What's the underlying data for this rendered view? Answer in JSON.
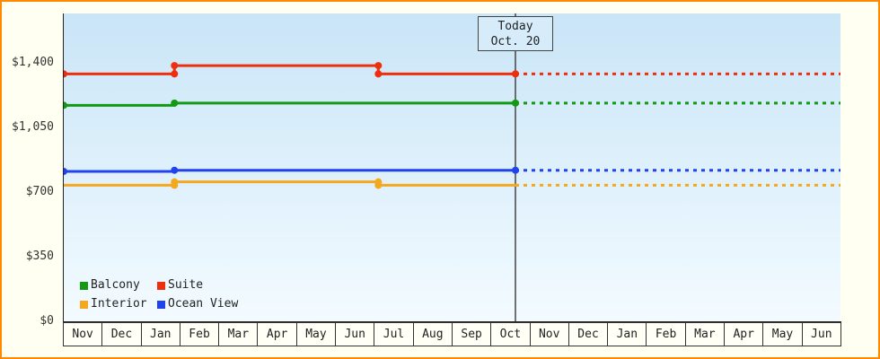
{
  "page": {
    "background_color": "#fffff2",
    "border_color": "#ff8a00"
  },
  "legend": {
    "items": [
      {
        "label": "Balcony",
        "color": "#129a12"
      },
      {
        "label": "Suite",
        "color": "#ee2f0e"
      },
      {
        "label": "Interior",
        "color": "#f4a81d"
      },
      {
        "label": "Ocean View",
        "color": "#2043ee"
      }
    ]
  },
  "chart_data": {
    "type": "line",
    "title": "",
    "xlabel": "",
    "ylabel": "",
    "ylim": [
      0,
      1400
    ],
    "grid": false,
    "legend_position": "bottom-left-inside",
    "y_ticks": [
      {
        "value": 0,
        "label": "$0"
      },
      {
        "value": 350,
        "label": "$350"
      },
      {
        "value": 700,
        "label": "$700"
      },
      {
        "value": 1050,
        "label": "$1,050"
      },
      {
        "value": 1400,
        "label": "$1,400"
      }
    ],
    "x_months": [
      "Nov",
      "Dec",
      "Jan",
      "Feb",
      "Mar",
      "Apr",
      "May",
      "Jun",
      "Jul",
      "Aug",
      "Sep",
      "Oct",
      "Nov",
      "Dec",
      "Jan",
      "Feb",
      "Mar",
      "Apr",
      "May",
      "Jun"
    ],
    "annotation": {
      "line1": "Today",
      "line2": "Oct. 20",
      "x": 11.63
    },
    "today_x": 11.63,
    "today_line_color": "#444444",
    "series": [
      {
        "name": "Interior",
        "color": "#f4a81d",
        "segments": {
          "solid": [
            [
              0,
              737
            ],
            [
              2.85,
              737
            ],
            [
              2.85,
              755
            ],
            [
              8.1,
              755
            ],
            [
              8.1,
              737
            ],
            [
              11.63,
              737
            ]
          ],
          "dashed": [
            [
              11.63,
              737
            ],
            [
              20,
              737
            ]
          ]
        },
        "markers": [
          [
            2.85,
            737
          ],
          [
            2.85,
            755
          ],
          [
            8.1,
            755
          ],
          [
            8.1,
            737
          ]
        ]
      },
      {
        "name": "Ocean View",
        "color": "#2043ee",
        "segments": {
          "solid": [
            [
              0,
              812
            ],
            [
              2.85,
              812
            ],
            [
              2.85,
              818
            ],
            [
              11.63,
              818
            ]
          ],
          "dashed": [
            [
              11.63,
              818
            ],
            [
              20,
              818
            ]
          ]
        },
        "markers": [
          [
            0,
            812
          ],
          [
            2.85,
            818
          ],
          [
            11.63,
            818
          ]
        ]
      },
      {
        "name": "Balcony",
        "color": "#129a12",
        "segments": {
          "solid": [
            [
              0,
              1170
            ],
            [
              2.85,
              1170
            ],
            [
              2.85,
              1182
            ],
            [
              11.63,
              1182
            ]
          ],
          "dashed": [
            [
              11.63,
              1182
            ],
            [
              20,
              1182
            ]
          ]
        },
        "markers": [
          [
            0,
            1170
          ],
          [
            2.85,
            1182
          ],
          [
            11.63,
            1182
          ]
        ]
      },
      {
        "name": "Suite",
        "color": "#ee2f0e",
        "segments": {
          "solid": [
            [
              0,
              1340
            ],
            [
              2.85,
              1340
            ],
            [
              2.85,
              1385
            ],
            [
              8.1,
              1385
            ],
            [
              8.1,
              1340
            ],
            [
              11.63,
              1340
            ]
          ],
          "dashed": [
            [
              11.63,
              1340
            ],
            [
              20,
              1340
            ]
          ]
        },
        "markers": [
          [
            0,
            1340
          ],
          [
            2.85,
            1340
          ],
          [
            2.85,
            1385
          ],
          [
            8.1,
            1385
          ],
          [
            8.1,
            1340
          ],
          [
            11.63,
            1340
          ]
        ]
      }
    ]
  }
}
